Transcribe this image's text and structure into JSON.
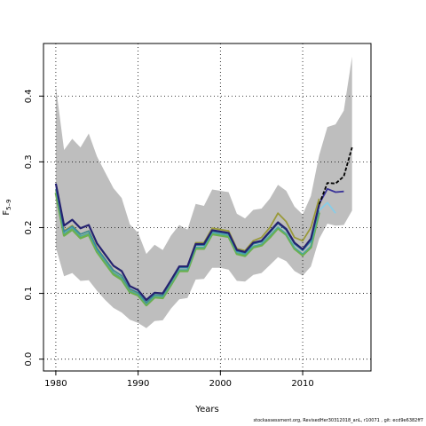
{
  "chart_data": {
    "type": "line",
    "title": "",
    "xlabel": "Years",
    "ylabel": "F",
    "ylabel_sub": "5–9",
    "xlim": [
      1978.5,
      2018.3
    ],
    "ylim": [
      -0.018,
      0.48
    ],
    "x_ticks": [
      1980,
      1990,
      2000,
      2010
    ],
    "y_ticks": [
      0.0,
      0.1,
      0.2,
      0.3,
      0.4
    ],
    "y_tick_labels": [
      "0.0",
      "0.1",
      "0.2",
      "0.3",
      "0.4"
    ],
    "grid": true,
    "grid_style": "dotted",
    "band": {
      "color": "#bebebe",
      "x": [
        1980,
        1981,
        1982,
        1983,
        1984,
        1985,
        1986,
        1987,
        1988,
        1989,
        1990,
        1991,
        1992,
        1993,
        1994,
        1995,
        1996,
        1997,
        1998,
        1999,
        2000,
        2001,
        2002,
        2003,
        2004,
        2005,
        2006,
        2007,
        2008,
        2009,
        2010,
        2011,
        2012,
        2013,
        2014,
        2015,
        2016
      ],
      "upper": [
        0.415,
        0.318,
        0.335,
        0.322,
        0.343,
        0.308,
        0.284,
        0.26,
        0.245,
        0.205,
        0.192,
        0.16,
        0.174,
        0.166,
        0.188,
        0.204,
        0.197,
        0.236,
        0.233,
        0.258,
        0.256,
        0.254,
        0.221,
        0.214,
        0.227,
        0.229,
        0.244,
        0.265,
        0.256,
        0.232,
        0.22,
        0.248,
        0.31,
        0.353,
        0.357,
        0.378,
        0.46
      ],
      "lower": [
        0.17,
        0.126,
        0.131,
        0.119,
        0.12,
        0.104,
        0.09,
        0.078,
        0.071,
        0.06,
        0.055,
        0.047,
        0.058,
        0.059,
        0.077,
        0.091,
        0.093,
        0.121,
        0.122,
        0.139,
        0.139,
        0.136,
        0.119,
        0.118,
        0.128,
        0.131,
        0.143,
        0.155,
        0.149,
        0.134,
        0.127,
        0.141,
        0.183,
        0.206,
        0.203,
        0.204,
        0.226
      ]
    },
    "series": [
      {
        "color": "#6cb04e",
        "width": 2.6,
        "x": [
          1980,
          1981,
          1982,
          1983,
          1984,
          1985,
          1986,
          1987,
          1988,
          1989,
          1990,
          1991,
          1992,
          1993,
          1994,
          1995,
          1996,
          1997,
          1998,
          1999,
          2000,
          2001,
          2002,
          2003,
          2004,
          2005,
          2006,
          2007,
          2008,
          2009,
          2010,
          2011,
          2012
        ],
        "y": [
          0.253,
          0.188,
          0.197,
          0.184,
          0.189,
          0.163,
          0.146,
          0.129,
          0.121,
          0.102,
          0.097,
          0.082,
          0.094,
          0.093,
          0.113,
          0.134,
          0.134,
          0.168,
          0.168,
          0.19,
          0.188,
          0.186,
          0.16,
          0.157,
          0.17,
          0.173,
          0.185,
          0.199,
          0.189,
          0.168,
          0.158,
          0.17,
          0.223
        ]
      },
      {
        "color": "#4aa8a0",
        "width": 1.3,
        "x": [
          1980,
          1981,
          1982,
          1983,
          1984,
          1985,
          1986,
          1987,
          1988,
          1989,
          1990,
          1991,
          1992,
          1993,
          1994,
          1995,
          1996,
          1997,
          1998,
          1999,
          2000,
          2001,
          2002,
          2003,
          2004,
          2005,
          2006,
          2007,
          2008,
          2009,
          2010,
          2011,
          2012
        ],
        "y": [
          0.256,
          0.191,
          0.2,
          0.187,
          0.192,
          0.166,
          0.149,
          0.132,
          0.124,
          0.104,
          0.099,
          0.084,
          0.096,
          0.095,
          0.115,
          0.136,
          0.136,
          0.17,
          0.17,
          0.192,
          0.19,
          0.188,
          0.162,
          0.159,
          0.172,
          0.175,
          0.188,
          0.201,
          0.191,
          0.17,
          0.16,
          0.172,
          0.226
        ]
      },
      {
        "color": "#9a9a3a",
        "width": 1.8,
        "x": [
          1980,
          1981,
          1982,
          1983,
          1984,
          1985,
          1986,
          1987,
          1988,
          1989,
          1990,
          1991,
          1992,
          1993,
          1994,
          1995,
          1996,
          1997,
          1998,
          1999,
          2000,
          2001,
          2002,
          2003,
          2004,
          2005,
          2006,
          2007,
          2008,
          2009,
          2010,
          2011,
          2012
        ],
        "y": [
          0.258,
          0.195,
          0.203,
          0.19,
          0.195,
          0.169,
          0.152,
          0.135,
          0.127,
          0.106,
          0.101,
          0.086,
          0.098,
          0.097,
          0.118,
          0.14,
          0.14,
          0.177,
          0.177,
          0.199,
          0.197,
          0.195,
          0.168,
          0.165,
          0.18,
          0.185,
          0.2,
          0.222,
          0.209,
          0.185,
          0.18,
          0.2,
          0.244
        ]
      },
      {
        "color": "#2e88a8",
        "width": 1.3,
        "x": [
          1980,
          1981,
          1982,
          1983,
          1984,
          1985,
          1986,
          1987,
          1988,
          1989,
          1990,
          1991,
          1992,
          1993,
          1994,
          1995,
          1996,
          1997,
          1998,
          1999,
          2000,
          2001,
          2002,
          2003,
          2004,
          2005,
          2006,
          2007,
          2008,
          2009,
          2010,
          2011,
          2012
        ],
        "y": [
          0.259,
          0.194,
          0.202,
          0.19,
          0.195,
          0.168,
          0.152,
          0.135,
          0.127,
          0.107,
          0.101,
          0.086,
          0.098,
          0.097,
          0.118,
          0.139,
          0.139,
          0.173,
          0.173,
          0.194,
          0.192,
          0.19,
          0.164,
          0.161,
          0.175,
          0.178,
          0.192,
          0.206,
          0.196,
          0.175,
          0.165,
          0.179,
          0.234
        ]
      },
      {
        "color": "#252270",
        "width": 2.2,
        "x": [
          1980,
          1981,
          1982,
          1983,
          1984,
          1985,
          1986,
          1987,
          1988,
          1989,
          1990,
          1991,
          1992,
          1993,
          1994,
          1995,
          1996,
          1997,
          1998,
          1999,
          2000,
          2001,
          2002,
          2003,
          2004,
          2005,
          2006,
          2007,
          2008,
          2009,
          2010,
          2011,
          2012
        ],
        "y": [
          0.267,
          0.203,
          0.212,
          0.199,
          0.204,
          0.176,
          0.159,
          0.142,
          0.134,
          0.111,
          0.105,
          0.09,
          0.101,
          0.1,
          0.12,
          0.141,
          0.141,
          0.175,
          0.175,
          0.196,
          0.194,
          0.192,
          0.166,
          0.163,
          0.177,
          0.18,
          0.194,
          0.208,
          0.198,
          0.177,
          0.167,
          0.183,
          0.235
        ]
      },
      {
        "color": "#87cde8",
        "width": 1.8,
        "x": [
          2012,
          2013,
          2014
        ],
        "y": [
          0.226,
          0.238,
          0.222
        ]
      },
      {
        "color": "#3a3398",
        "width": 1.8,
        "x": [
          2012,
          2013,
          2014,
          2015
        ],
        "y": [
          0.236,
          0.259,
          0.254,
          0.255
        ]
      },
      {
        "color": "#000000",
        "width": 1.8,
        "dashed": true,
        "x": [
          2012,
          2013,
          2014,
          2015,
          2016
        ],
        "y": [
          0.235,
          0.268,
          0.267,
          0.278,
          0.322
        ]
      }
    ]
  },
  "footer": "stockassessment.org, RevisedHer30312018_anL, r10071 , git: ecd9e6382ff7"
}
